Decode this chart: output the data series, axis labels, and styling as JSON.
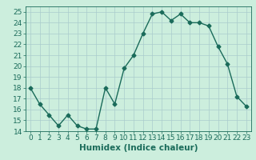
{
  "x": [
    0,
    1,
    2,
    3,
    4,
    5,
    6,
    7,
    8,
    9,
    10,
    11,
    12,
    13,
    14,
    15,
    16,
    17,
    18,
    19,
    20,
    21,
    22,
    23
  ],
  "y": [
    18.0,
    16.5,
    15.5,
    14.5,
    15.5,
    14.5,
    14.2,
    14.2,
    18.0,
    16.5,
    19.8,
    21.0,
    23.0,
    24.8,
    25.0,
    24.2,
    24.8,
    24.0,
    24.0,
    23.7,
    21.8,
    20.2,
    17.2,
    16.3
  ],
  "line_color": "#1a6b5a",
  "marker": "D",
  "marker_size": 2.5,
  "bg_color": "#cceedd",
  "grid_color": "#aacccc",
  "xlabel": "Humidex (Indice chaleur)",
  "ylim": [
    14,
    25.5
  ],
  "xlim": [
    -0.5,
    23.5
  ],
  "yticks": [
    14,
    15,
    16,
    17,
    18,
    19,
    20,
    21,
    22,
    23,
    24,
    25
  ],
  "xticks": [
    0,
    1,
    2,
    3,
    4,
    5,
    6,
    7,
    8,
    9,
    10,
    11,
    12,
    13,
    14,
    15,
    16,
    17,
    18,
    19,
    20,
    21,
    22,
    23
  ],
  "xlabel_fontsize": 7.5,
  "tick_fontsize": 6.5,
  "line_width": 1.0
}
